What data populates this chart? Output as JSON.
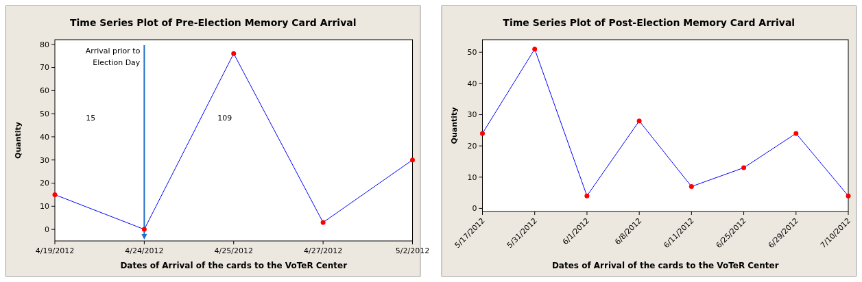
{
  "chart_data": [
    {
      "type": "line",
      "title": "Time Series Plot of Pre-Election Memory Card Arrival",
      "xlabel": "Dates of Arrival of the cards to the VoTeR Center",
      "ylabel": "Quantity",
      "categories": [
        "4/19/2012",
        "4/24/2012",
        "4/25/2012",
        "4/27/2012",
        "5/2/2012"
      ],
      "series": [
        {
          "color": "#0000ff",
          "colors": [
            "#ff0000",
            "#ff0000",
            "#ff0000",
            "#ff0000",
            "#ff0000"
          ],
          "values": [
            15,
            0,
            76,
            3,
            30
          ]
        }
      ],
      "ylim": [
        -5,
        82
      ],
      "yticks": [
        0,
        10,
        20,
        30,
        40,
        50,
        60,
        70,
        80
      ],
      "marker": "circle",
      "line_style": "solid",
      "ref_lines": [
        {
          "axis": "x",
          "value": "4/24/2012",
          "label": "Arrival prior to Election Day",
          "color": "#1f6fc5"
        }
      ],
      "annotations": [
        "15",
        "109"
      ]
    },
    {
      "type": "line",
      "title": "Time Series Plot of Post-Election Memory Card Arrival",
      "xlabel": "Dates of Arrival of the cards to the VoTeR Center",
      "ylabel": "Quantity",
      "categories": [
        "5/17/2012",
        "5/31/2012",
        "6/1/2012",
        "6/8/2012",
        "6/11/2012",
        "6/25/2012",
        "6/29/2012",
        "7/10/2012"
      ],
      "series": [
        {
          "color": "#0000ff",
          "colors": [
            "#ff0000",
            "#ff0000",
            "#ff0000",
            "#ff0000",
            "#ff0000",
            "#ff0000",
            "#ff0000",
            "#ff0000"
          ],
          "values": [
            24,
            51,
            4,
            28,
            7,
            13,
            24,
            4
          ]
        }
      ],
      "ylim": [
        -1,
        54
      ],
      "yticks": [
        0,
        10,
        20,
        30,
        40,
        50
      ],
      "marker": "circle",
      "line_style": "solid"
    }
  ]
}
